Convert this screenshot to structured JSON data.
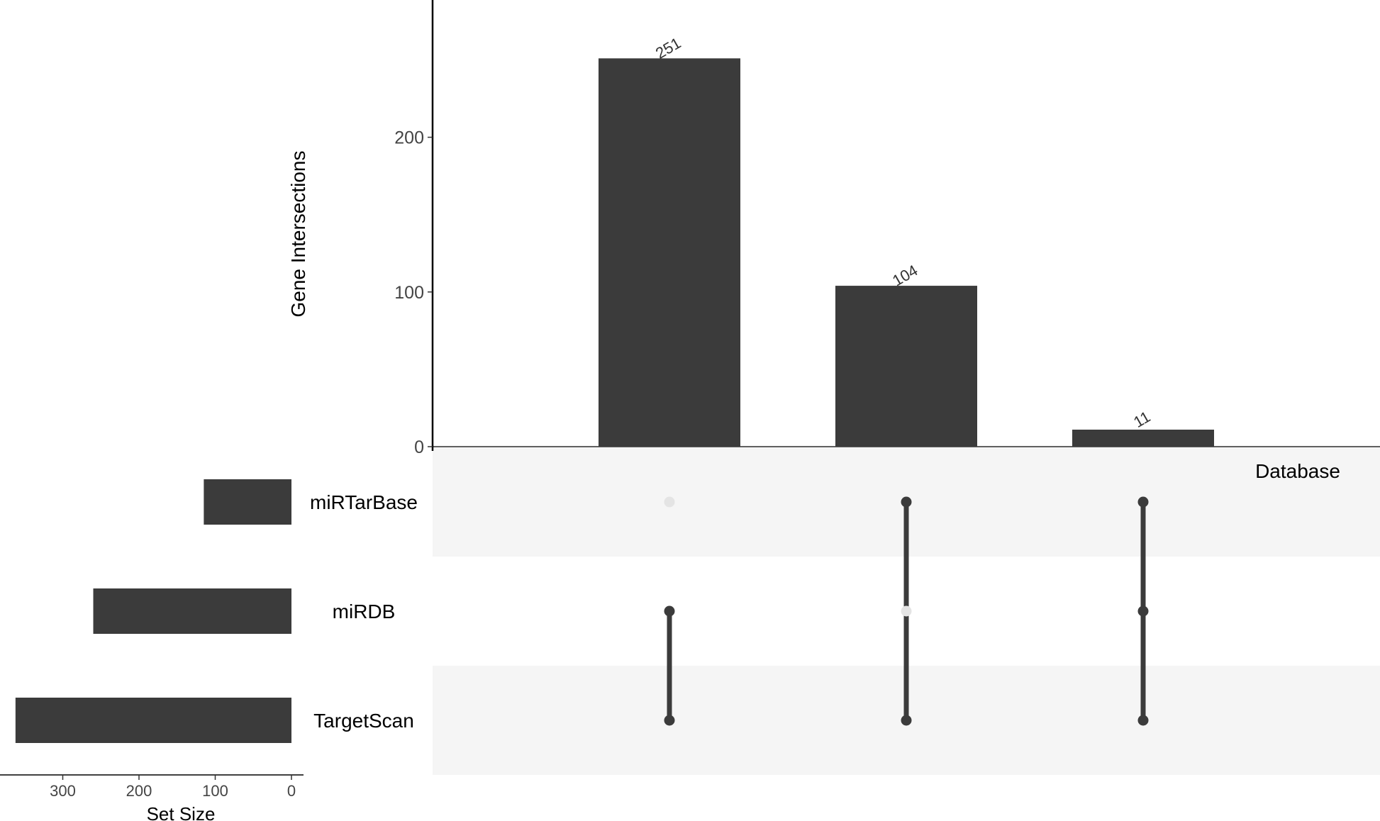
{
  "chart_data": {
    "type": "bar",
    "kind": "upset",
    "intersections": {
      "ylabel": "Gene Intersections",
      "yticks": [
        0,
        100,
        200
      ],
      "ylim": [
        0,
        290
      ],
      "values": [
        251,
        104,
        11
      ],
      "labels": [
        "251",
        "104",
        "11"
      ]
    },
    "sets": {
      "header": "Database",
      "names": [
        "miRTarBase",
        "miRDB",
        "TargetScan"
      ],
      "sizes": [
        115,
        260,
        362
      ],
      "xlabel": "Set Size",
      "xticks": [
        300,
        200,
        100,
        0
      ],
      "xlim": [
        0,
        380
      ]
    },
    "matrix": [
      [
        false,
        true,
        true
      ],
      [
        true,
        false,
        true
      ],
      [
        true,
        true,
        true
      ]
    ],
    "colors": {
      "bar": "#3b3b3b",
      "dot_on": "#3b3b3b",
      "dot_off": "#e4e4e4",
      "band": "#f5f5f5"
    }
  }
}
